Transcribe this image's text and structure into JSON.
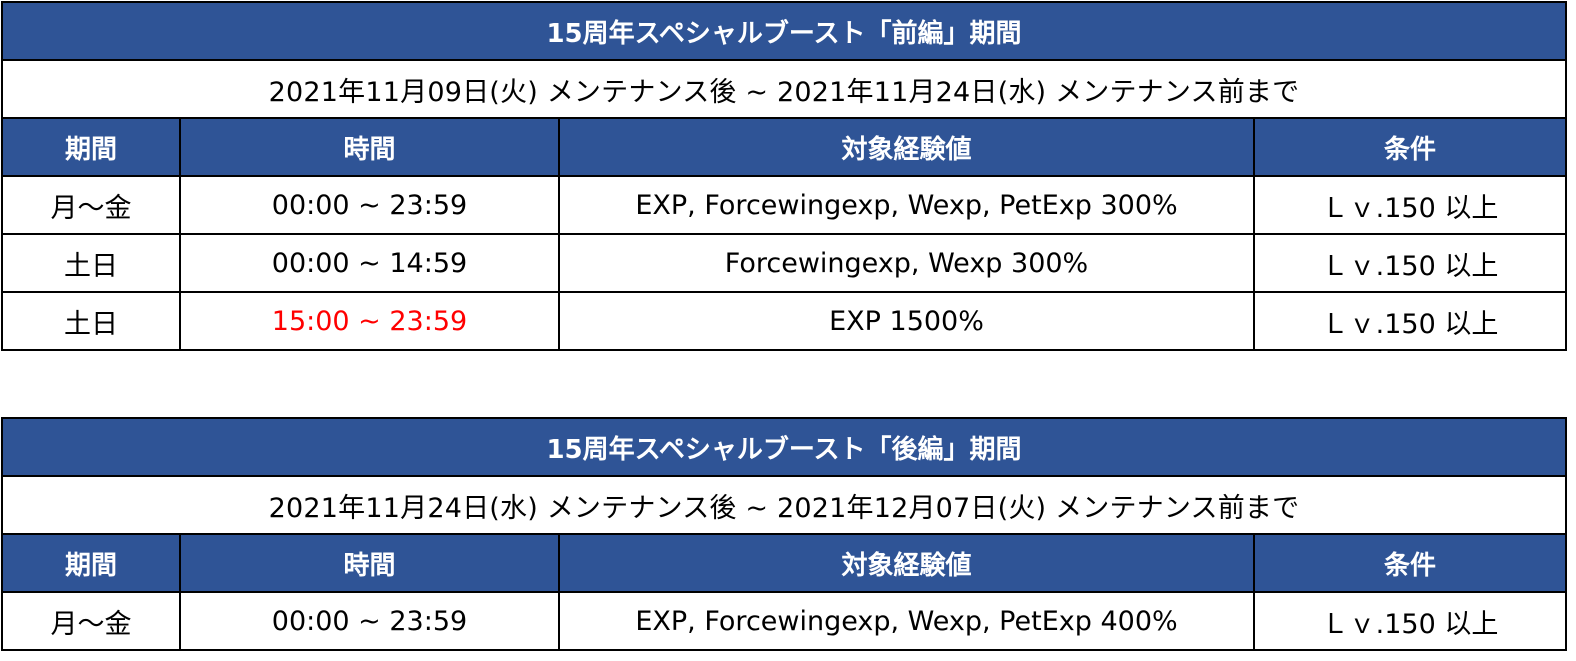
{
  "columns": [
    "期間",
    "時間",
    "対象経験値",
    "条件"
  ],
  "tables": [
    {
      "title": "15周年スペシャルブースト「前編」期間",
      "period": "2021年11月09日(火) メンテナンス後 ~ 2021年11月24日(水) メンテナンス前まで",
      "rows": [
        {
          "day": "月～金",
          "time": "00:00 ~ 23:59",
          "exp": "EXP, Forcewingexp, Wexp, PetExp 300%",
          "cond": "Ｌｖ.150 以上",
          "highlight": false
        },
        {
          "day": "土日",
          "time": "00:00 ~ 14:59",
          "exp": "Forcewingexp, Wexp 300%",
          "cond": "Ｌｖ.150 以上",
          "highlight": false
        },
        {
          "day": "土日",
          "time": "15:00 ~ 23:59",
          "exp": "EXP 1500%",
          "cond": "Ｌｖ.150 以上",
          "highlight": true
        }
      ]
    },
    {
      "title": "15周年スペシャルブースト「後編」期間",
      "period": "2021年11月24日(水) メンテナンス後 ~ 2021年12月07日(火) メンテナンス前まで",
      "rows": [
        {
          "day": "月～金",
          "time": "00:00 ~ 23:59",
          "exp": "EXP, Forcewingexp, Wexp, PetExp 400%",
          "cond": "Ｌｖ.150 以上",
          "highlight": false
        }
      ]
    }
  ],
  "colors": {
    "header_bg": "#2f5496",
    "header_text": "#ffffff",
    "highlight_text": "#ff0000",
    "border": "#000000"
  }
}
